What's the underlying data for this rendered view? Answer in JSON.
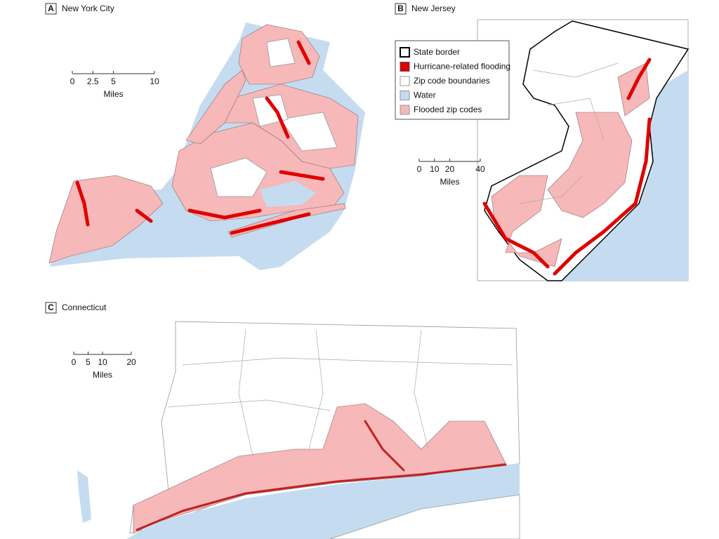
{
  "panels": [
    {
      "letter": "A",
      "title": "New York City",
      "scale": {
        "ticks": [
          0,
          2.5,
          5,
          10
        ],
        "unit": "Miles"
      }
    },
    {
      "letter": "B",
      "title": "New Jersey",
      "scale": {
        "ticks": [
          0,
          10,
          20,
          40
        ],
        "unit": "Miles"
      }
    },
    {
      "letter": "C",
      "title": "Connecticut",
      "scale": {
        "ticks": [
          0,
          5,
          10,
          20
        ],
        "unit": "Miles"
      }
    }
  ],
  "legend": [
    {
      "label": "State border",
      "color": "#ffffff",
      "border": "#000000"
    },
    {
      "label": "Hurricane-related flooding",
      "color": "#e00000",
      "border": "#555555"
    },
    {
      "label": "Zip code boundaries",
      "color": "#ffffff",
      "border": "#999999"
    },
    {
      "label": "Water",
      "color": "#c5dcf0",
      "border": "#999999"
    },
    {
      "label": "Flooded zip codes",
      "color": "#f6b8b8",
      "border": "#999999"
    }
  ]
}
